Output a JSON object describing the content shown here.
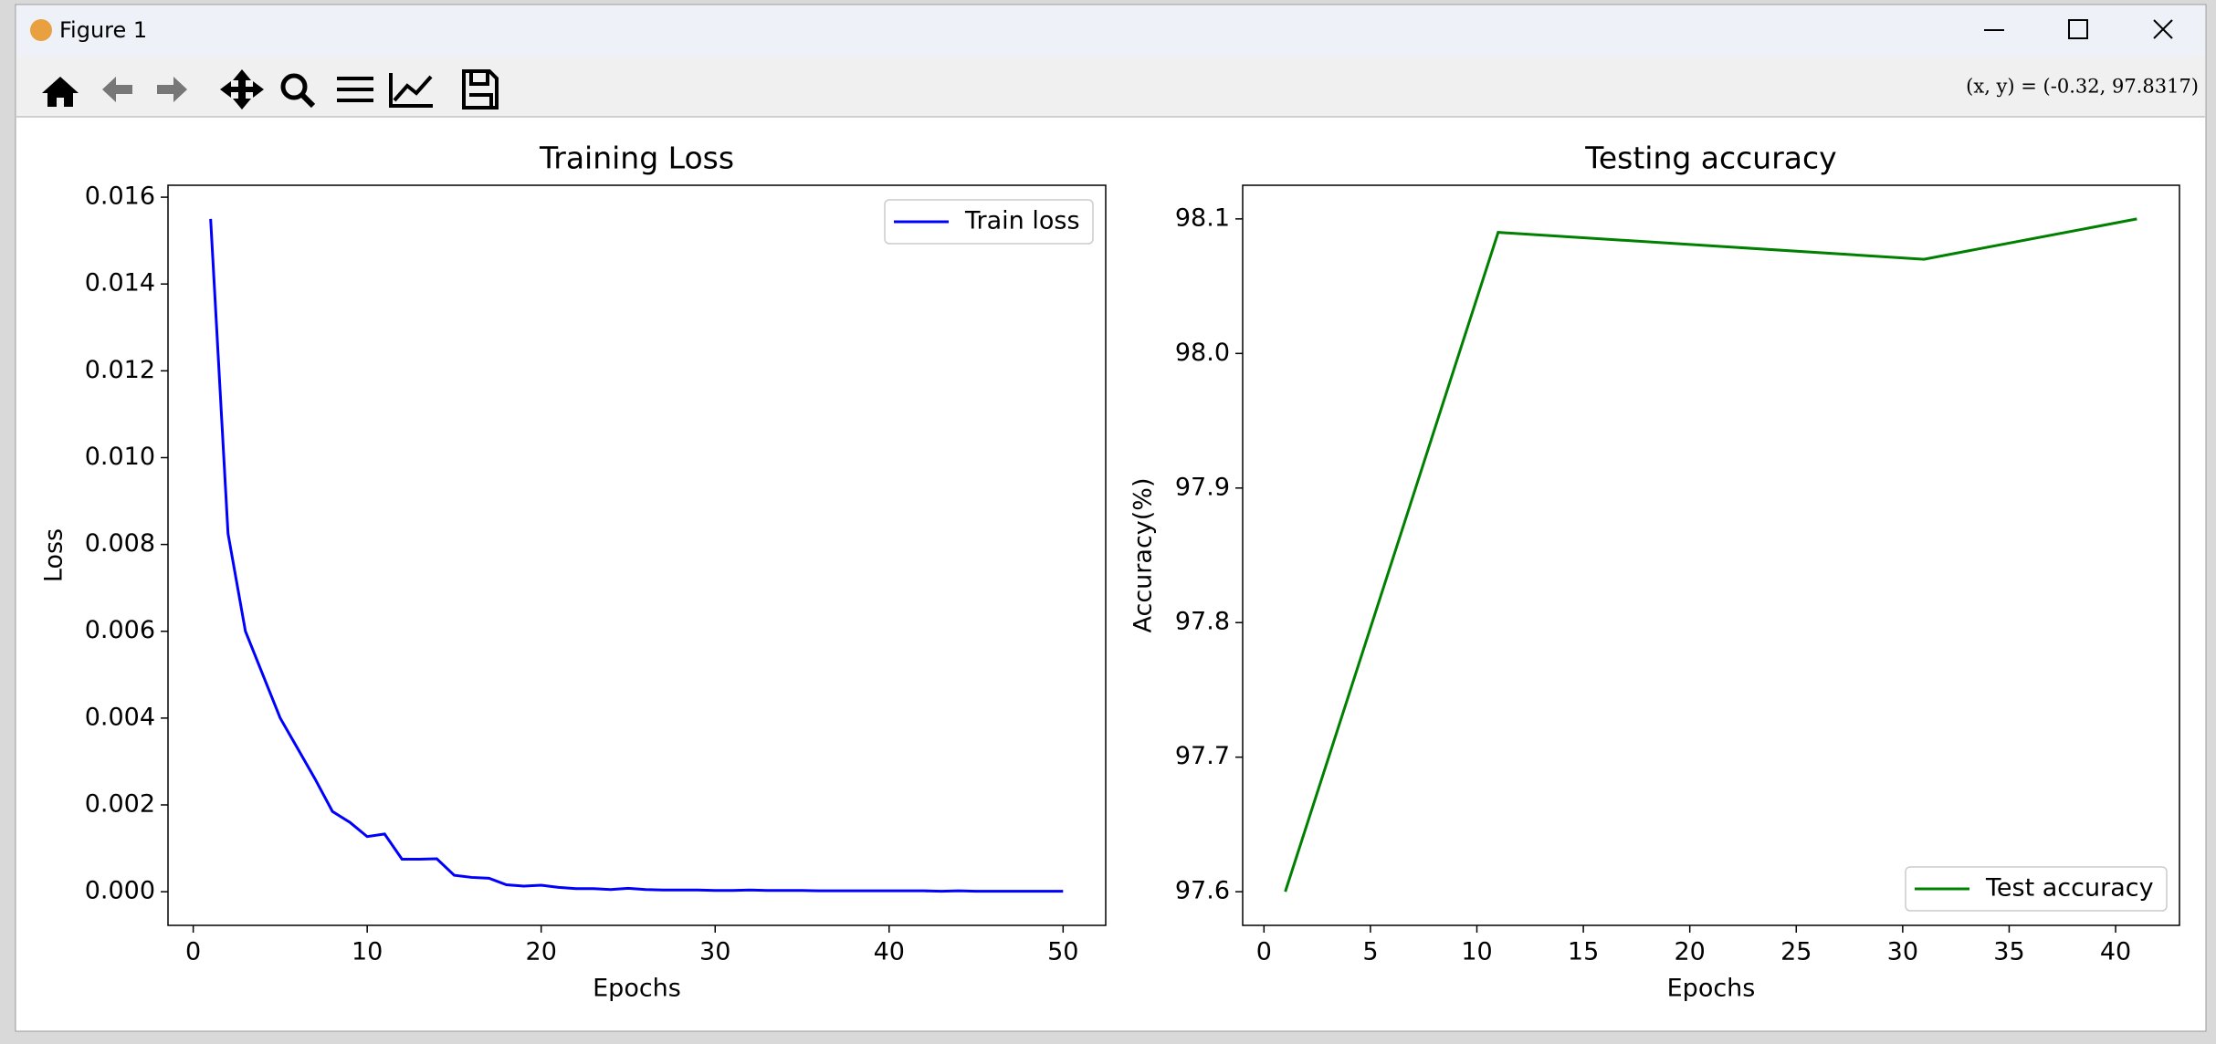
{
  "window": {
    "title": "Figure 1"
  },
  "toolbar": {
    "coords": "(x, y) = (-0.32, 97.8317)"
  },
  "chart_data": [
    {
      "type": "line",
      "title": "Training Loss",
      "x_label": "Epochs",
      "y_label": "Loss",
      "x": [
        1,
        2,
        3,
        4,
        5,
        6,
        7,
        8,
        9,
        10,
        11,
        12,
        13,
        14,
        15,
        16,
        17,
        18,
        19,
        20,
        21,
        22,
        23,
        24,
        25,
        26,
        27,
        28,
        29,
        30,
        31,
        32,
        33,
        34,
        35,
        36,
        37,
        38,
        39,
        40,
        41,
        42,
        43,
        44,
        45,
        46,
        47,
        48,
        49,
        50
      ],
      "series": [
        {
          "name": "Train loss",
          "color": "#0000ff",
          "values": [
            0.0155,
            0.00825,
            0.006,
            0.005,
            0.004,
            0.0033,
            0.0026,
            0.00185,
            0.0016,
            0.00127,
            0.00133,
            0.00075,
            0.00075,
            0.00076,
            0.00038,
            0.00033,
            0.00031,
            0.00016,
            0.00013,
            0.00015,
            0.0001,
            7e-05,
            7e-05,
            5e-05,
            8e-05,
            5e-05,
            4e-05,
            4e-05,
            4e-05,
            3e-05,
            3e-05,
            4e-05,
            3e-05,
            3e-05,
            3e-05,
            2e-05,
            2e-05,
            2e-05,
            2e-05,
            2e-05,
            2e-05,
            2e-05,
            1e-05,
            2e-05,
            1e-05,
            1e-05,
            1e-05,
            1e-05,
            1e-05,
            1e-05
          ]
        }
      ],
      "xlim": [
        -1.45,
        52.45
      ],
      "xticks": [
        0,
        10,
        20,
        30,
        40,
        50
      ],
      "ylim": [
        -0.000775,
        0.016275
      ],
      "yticks": [
        {
          "value": 0,
          "label": "0.000"
        },
        {
          "value": 0.002,
          "label": "0.002"
        },
        {
          "value": 0.004,
          "label": "0.004"
        },
        {
          "value": 0.006,
          "label": "0.006"
        },
        {
          "value": 0.008,
          "label": "0.008"
        },
        {
          "value": 0.01,
          "label": "0.010"
        },
        {
          "value": 0.012,
          "label": "0.012"
        },
        {
          "value": 0.014,
          "label": "0.014"
        },
        {
          "value": 0.016,
          "label": "0.016"
        }
      ],
      "legend": "upper right",
      "grid": false
    },
    {
      "type": "line",
      "title": "Testing accuracy",
      "x_label": "Epochs",
      "y_label": "Accuracy(%)",
      "x": [
        1,
        11,
        31,
        41
      ],
      "series": [
        {
          "name": "Test accuracy",
          "color": "#008000",
          "values": [
            97.6,
            98.09,
            98.07,
            98.1
          ]
        }
      ],
      "xlim": [
        -1,
        43
      ],
      "xticks": [
        0,
        5,
        10,
        15,
        20,
        25,
        30,
        35,
        40
      ],
      "ylim": [
        97.575,
        98.125
      ],
      "yticks": [
        97.6,
        97.7,
        97.8,
        97.9,
        {
          "value": 98,
          "label": "98.0"
        },
        98.1
      ],
      "legend": "lower right",
      "grid": false
    }
  ]
}
